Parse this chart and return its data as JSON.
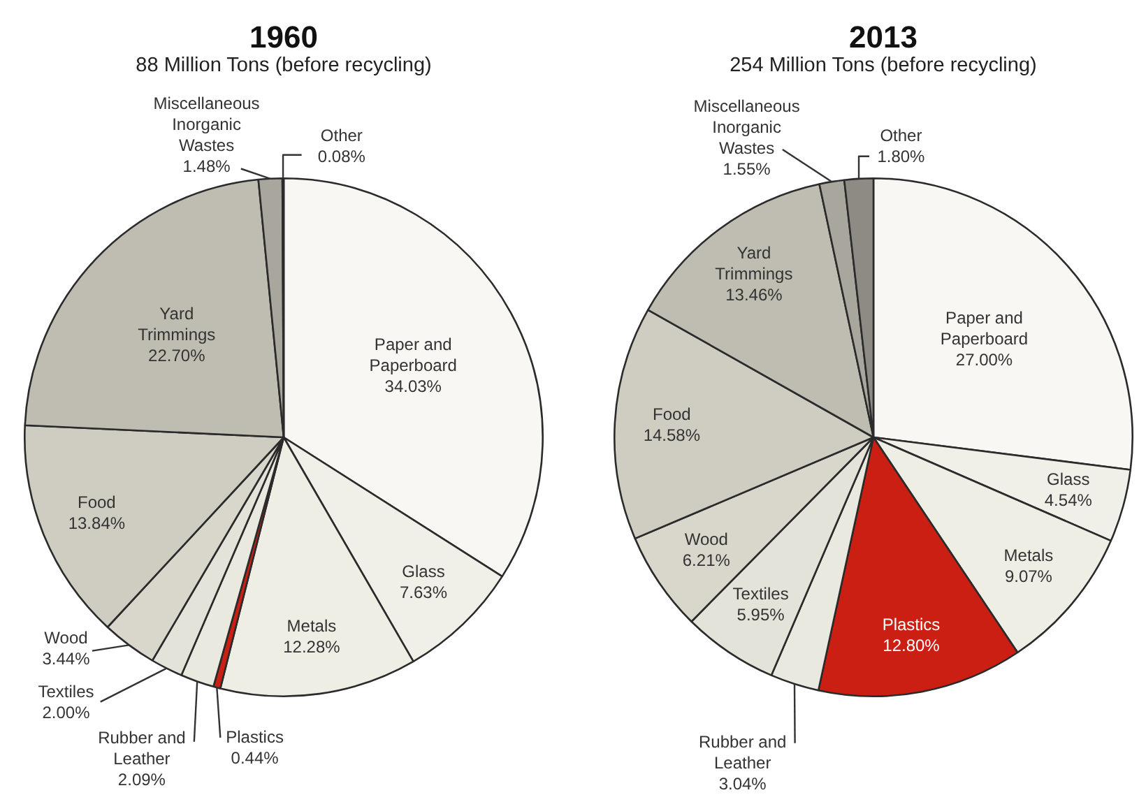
{
  "chart_data": [
    {
      "type": "pie",
      "title": "1960",
      "subtitle": "88 Million Tons (before recycling)",
      "categories": [
        "Paper and Paperboard",
        "Glass",
        "Metals",
        "Plastics",
        "Rubber and Leather",
        "Textiles",
        "Wood",
        "Food",
        "Yard Trimmings",
        "Miscellaneous Inorganic Wastes",
        "Other"
      ],
      "values": [
        34.03,
        7.63,
        12.28,
        0.44,
        2.09,
        2.0,
        3.44,
        13.84,
        22.7,
        1.48,
        0.08
      ],
      "value_labels": [
        "34.03%",
        "7.63%",
        "12.28%",
        "0.44%",
        "2.09%",
        "2.00%",
        "3.44%",
        "13.84%",
        "22.70%",
        "1.48%",
        "0.08%"
      ],
      "colors": [
        "#f8f7f3",
        "#f0efe8",
        "#efeee5",
        "#cc1f14",
        "#eae9e0",
        "#e4e3d9",
        "#d9d7cc",
        "#cfcdc2",
        "#bfbdb2",
        "#a9a79d",
        "#8d8b83"
      ]
    },
    {
      "type": "pie",
      "title": "2013",
      "subtitle": "254 Million Tons (before recycling)",
      "categories": [
        "Paper and Paperboard",
        "Glass",
        "Metals",
        "Plastics",
        "Rubber and Leather",
        "Textiles",
        "Wood",
        "Food",
        "Yard Trimmings",
        "Miscellaneous Inorganic Wastes",
        "Other"
      ],
      "values": [
        27.0,
        4.54,
        9.07,
        12.8,
        3.04,
        5.95,
        6.21,
        14.58,
        13.46,
        1.55,
        1.8
      ],
      "value_labels": [
        "27.00%",
        "4.54%",
        "9.07%",
        "12.80%",
        "3.04%",
        "5.95%",
        "6.21%",
        "14.58%",
        "13.46%",
        "1.55%",
        "1.80%"
      ],
      "colors": [
        "#f8f7f3",
        "#f0efe8",
        "#efeee5",
        "#cc1f14",
        "#eae9e0",
        "#e4e3d9",
        "#d9d7cc",
        "#cfcdc2",
        "#bfbdb2",
        "#a9a79d",
        "#8d8b83"
      ]
    }
  ]
}
